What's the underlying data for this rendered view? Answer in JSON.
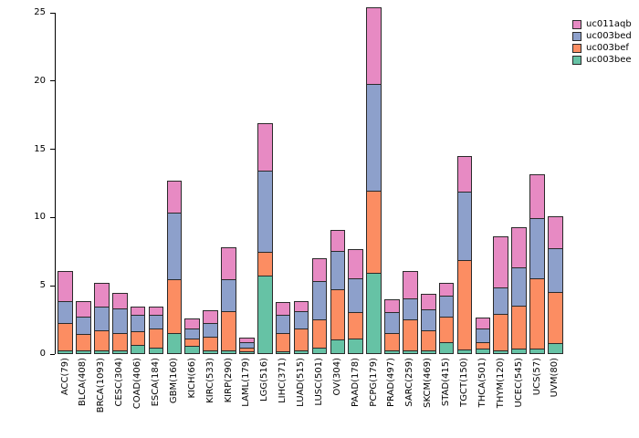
{
  "chart_data": {
    "type": "bar",
    "stacked": true,
    "title": "",
    "xlabel": "",
    "ylabel": "",
    "ylim": [
      0,
      25
    ],
    "yticks": [
      0,
      5,
      10,
      15,
      20,
      25
    ],
    "grid": false,
    "categories": [
      "ACC(79)",
      "BLCA(408)",
      "BRCA(1093)",
      "CESC(304)",
      "COAD(406)",
      "ESCA(184)",
      "GBM(160)",
      "KICH(66)",
      "KIRC(533)",
      "KIRP(290)",
      "LAML(179)",
      "LGG(516)",
      "LIHC(371)",
      "LUAD(515)",
      "LUSC(501)",
      "OV(304)",
      "PAAD(178)",
      "PCPG(179)",
      "PRAD(497)",
      "SARC(259)",
      "SKCM(469)",
      "STAD(415)",
      "TGCT(150)",
      "THCA(501)",
      "THYM(120)",
      "UCEC(545)",
      "UCS(57)",
      "UVM(80)"
    ],
    "series": [
      {
        "name": "uc003bee",
        "color": "#66C2A5",
        "values": [
          0.2,
          0.2,
          0.2,
          0.2,
          0.6,
          0.4,
          1.5,
          0.5,
          0.2,
          0.2,
          0.1,
          5.7,
          0.1,
          0.2,
          0.4,
          1.0,
          1.1,
          5.9,
          0.2,
          0.2,
          0.2,
          0.8,
          0.3,
          0.3,
          0.2,
          0.3,
          0.3,
          0.7
        ]
      },
      {
        "name": "uc003bef",
        "color": "#FC8D62",
        "values": [
          2.0,
          1.2,
          1.5,
          1.3,
          1.0,
          1.4,
          3.9,
          0.6,
          1.0,
          2.9,
          0.3,
          1.7,
          1.4,
          1.6,
          2.1,
          3.7,
          1.9,
          6.0,
          1.3,
          2.3,
          1.5,
          1.9,
          6.5,
          0.5,
          2.7,
          3.2,
          5.2,
          3.8
        ]
      },
      {
        "name": "uc003bed",
        "color": "#8DA0CB",
        "values": [
          1.6,
          1.3,
          1.7,
          1.8,
          1.2,
          1.0,
          4.9,
          0.7,
          1.0,
          2.3,
          0.4,
          6.0,
          1.3,
          1.3,
          2.8,
          2.8,
          2.5,
          7.8,
          1.5,
          1.5,
          1.5,
          1.5,
          5.0,
          1.0,
          1.9,
          2.8,
          4.4,
          3.2
        ]
      },
      {
        "name": "uc011aqb",
        "color": "#E78AC3",
        "values": [
          2.3,
          1.2,
          1.8,
          1.2,
          0.7,
          0.7,
          2.4,
          0.8,
          1.0,
          2.4,
          0.4,
          3.5,
          1.0,
          0.8,
          1.7,
          1.6,
          2.2,
          5.7,
          1.0,
          2.1,
          1.2,
          1.0,
          2.7,
          0.9,
          3.8,
          3.0,
          3.3,
          2.4
        ]
      }
    ],
    "legend": {
      "position": "top-right",
      "order": [
        "uc011aqb",
        "uc003bed",
        "uc003bef",
        "uc003bee"
      ]
    }
  }
}
